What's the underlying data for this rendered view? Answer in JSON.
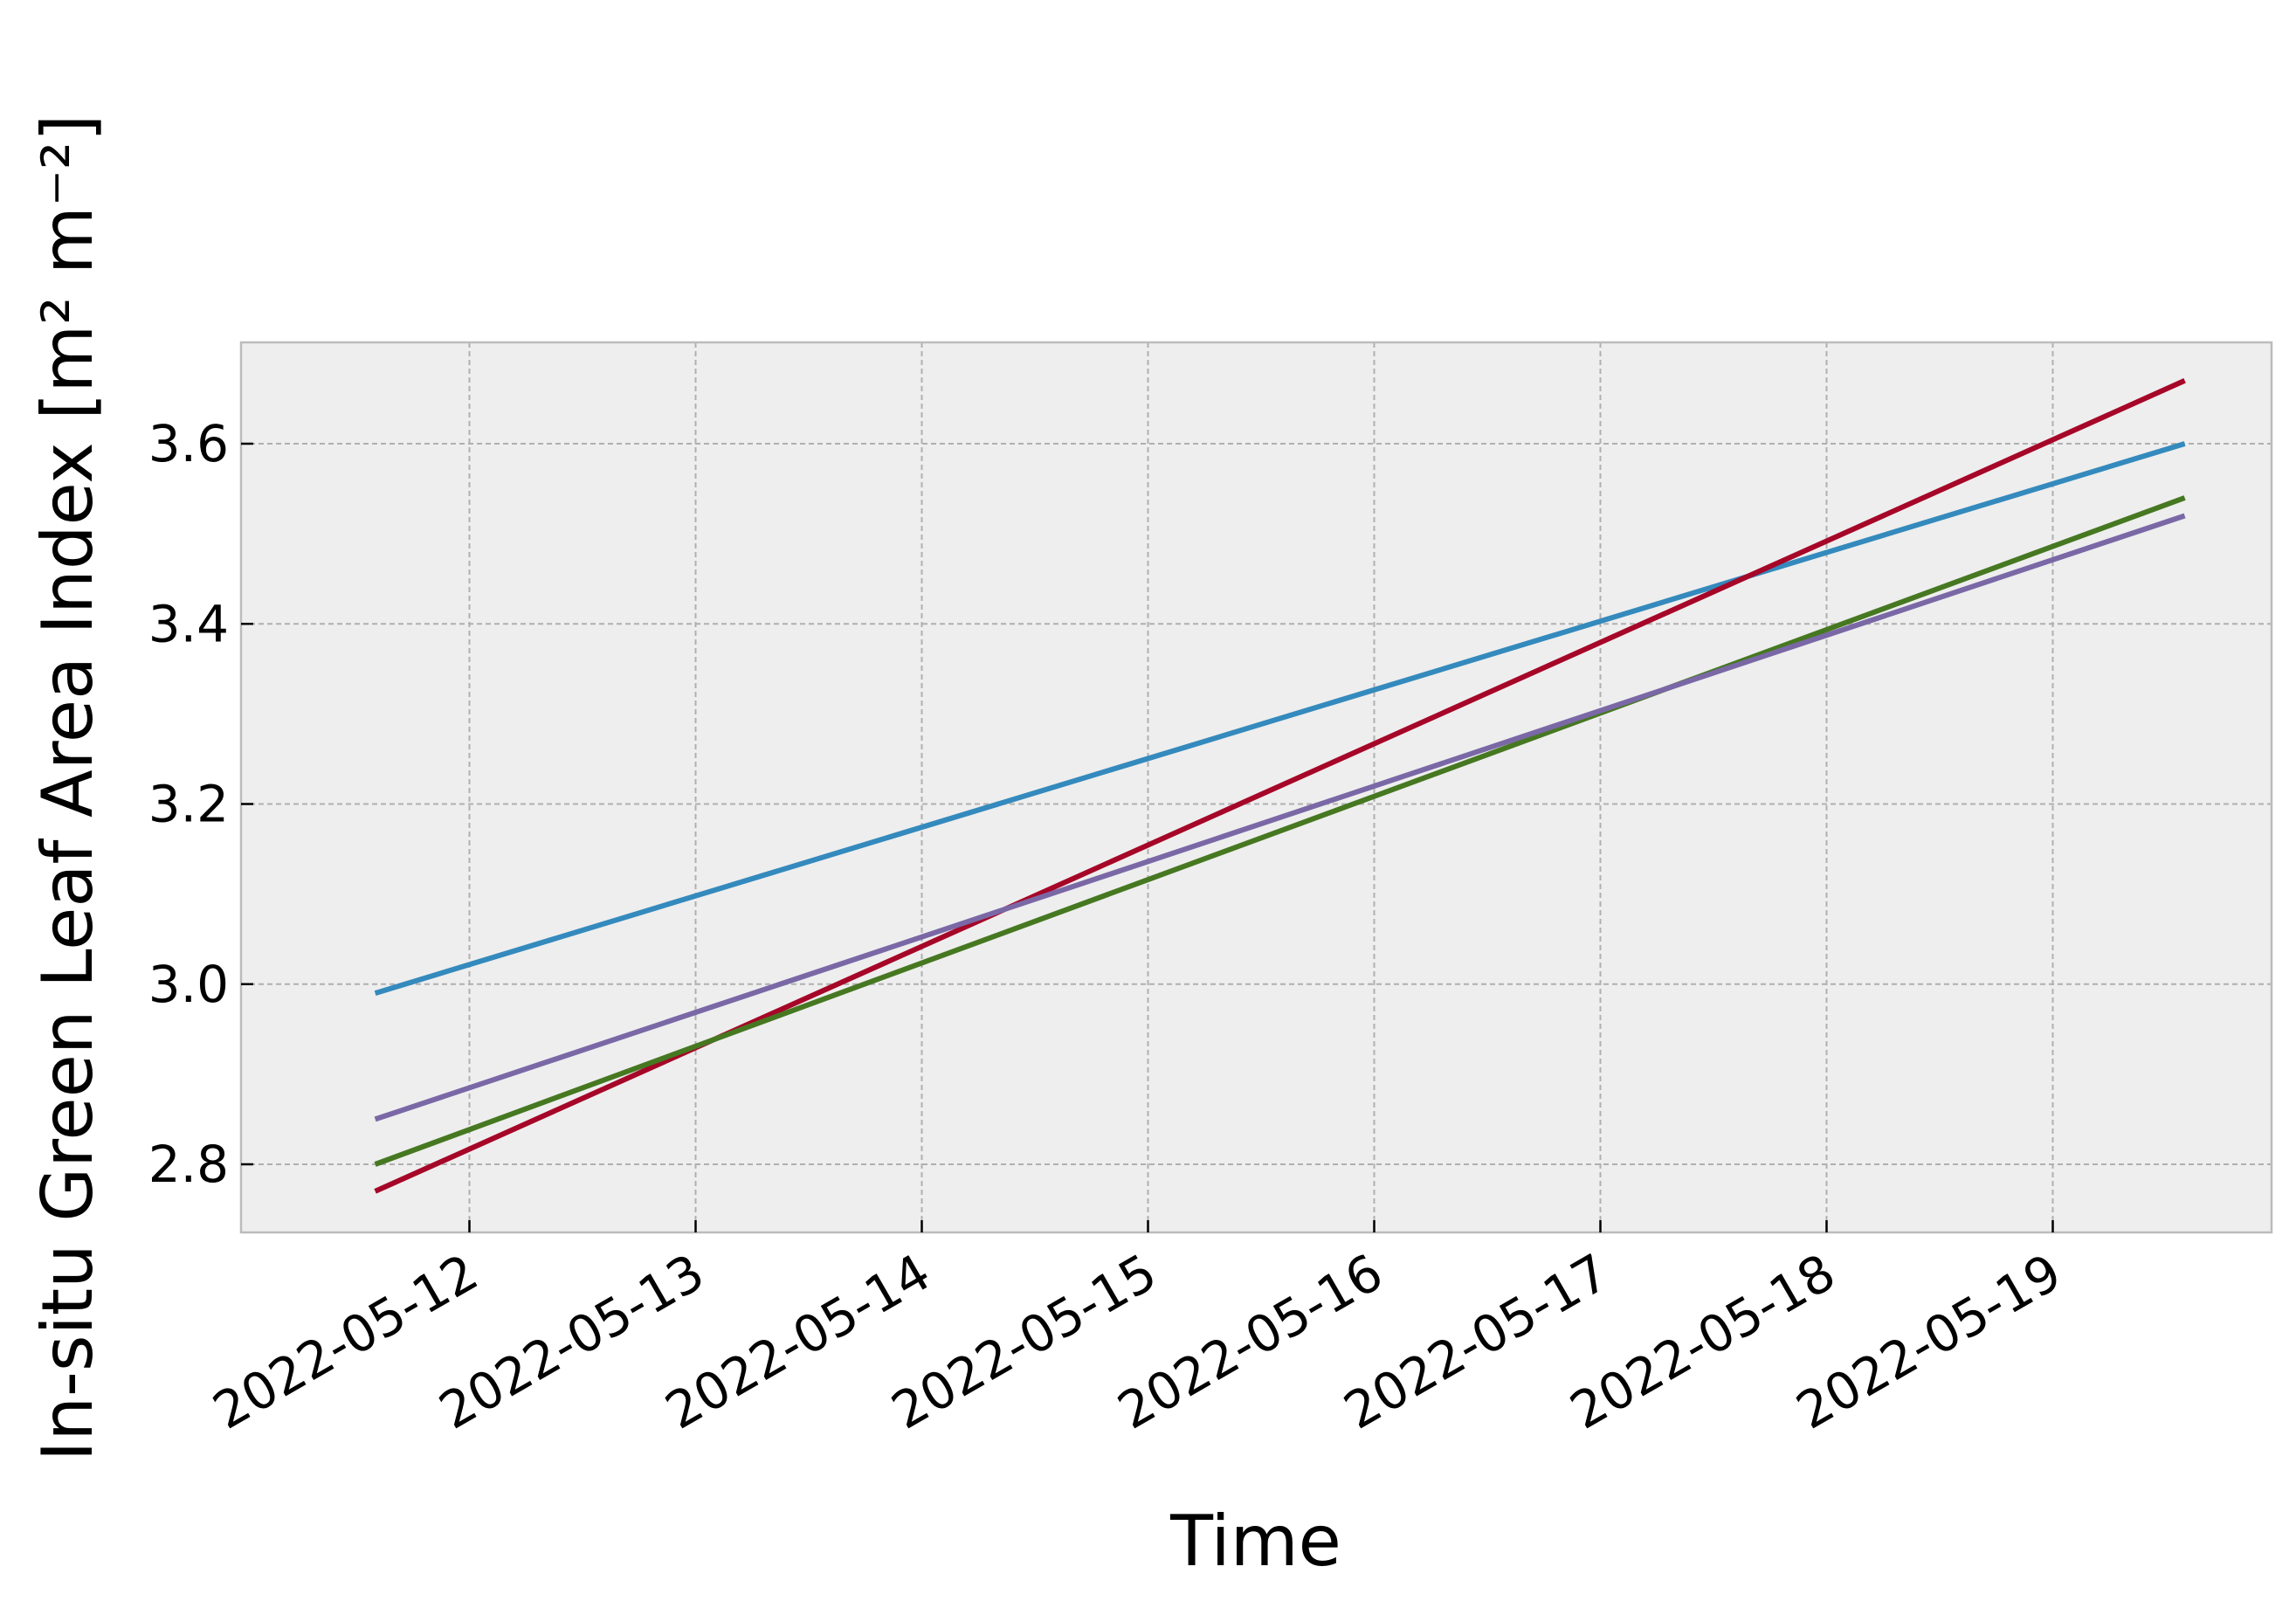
{
  "chart_data": {
    "type": "line",
    "xlabel": "Time",
    "ylabel": "In-situ Green Leaf Area Index [m² m⁻²]",
    "ylim": [
      2.723,
      3.71
    ],
    "xlim": [
      "2022-05-11 00:00",
      "2022-05-20 00:00"
    ],
    "grid": true,
    "x_ticks": [
      "2022-05-12",
      "2022-05-13",
      "2022-05-14",
      "2022-05-15",
      "2022-05-16",
      "2022-05-17",
      "2022-05-18",
      "2022-05-19"
    ],
    "y_ticks": [
      "2.8",
      "3.0",
      "3.2",
      "3.4",
      "3.6"
    ],
    "x": [
      "2022-05-11 14:00",
      "2022-05-19 14:00"
    ],
    "series": [
      {
        "color": "#348ABD",
        "values": [
          2.99,
          3.6
        ]
      },
      {
        "color": "#A60628",
        "values": [
          2.77,
          3.67
        ]
      },
      {
        "color": "#467821",
        "values": [
          2.8,
          3.54
        ]
      },
      {
        "color": "#7A68A6",
        "values": [
          2.85,
          3.52
        ]
      }
    ],
    "colors": {
      "plot_background": "#EEEEEE",
      "frame": "#BCBCBC",
      "grid": "#B0B0B0"
    }
  }
}
